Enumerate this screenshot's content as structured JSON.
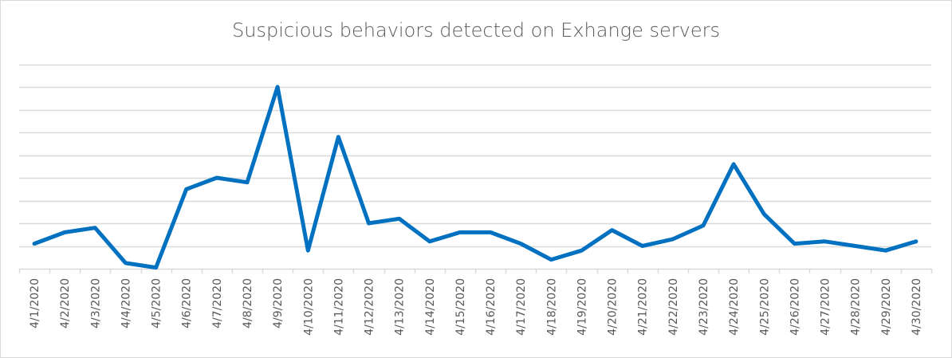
{
  "chart_data": {
    "type": "line",
    "title": "Suspicious behaviors detected on Exhange servers",
    "xlabel": "",
    "ylabel": "",
    "y_axis_labels_visible": false,
    "ylim": [
      0,
      9
    ],
    "grid": true,
    "legend": "none",
    "categories": [
      "4/1/2020",
      "4/2/2020",
      "4/3/2020",
      "4/4/2020",
      "4/5/2020",
      "4/6/2020",
      "4/7/2020",
      "4/8/2020",
      "4/9/2020",
      "4/10/2020",
      "4/11/2020",
      "4/12/2020",
      "4/13/2020",
      "4/14/2020",
      "4/15/2020",
      "4/16/2020",
      "4/17/2020",
      "4/18/2020",
      "4/19/2020",
      "4/20/2020",
      "4/21/2020",
      "4/22/2020",
      "4/23/2020",
      "4/24/2020",
      "4/25/2020",
      "4/26/2020",
      "4/27/2020",
      "4/28/2020",
      "4/29/2020",
      "4/30/2020"
    ],
    "series": [
      {
        "name": "Suspicious behaviors",
        "color": "#0070c0",
        "values": [
          1.1,
          1.6,
          1.8,
          0.25,
          0.05,
          3.5,
          4.0,
          3.8,
          8.0,
          0.8,
          5.8,
          2.0,
          2.2,
          1.2,
          1.6,
          1.6,
          1.1,
          0.4,
          0.8,
          1.7,
          1.0,
          1.3,
          1.9,
          4.6,
          2.4,
          1.1,
          1.2,
          1.0,
          0.8,
          1.2
        ]
      }
    ]
  },
  "colors": {
    "line": "#0070c0",
    "grid": "#d9d9d9",
    "text": "#595959",
    "border": "#d9d9d9"
  }
}
